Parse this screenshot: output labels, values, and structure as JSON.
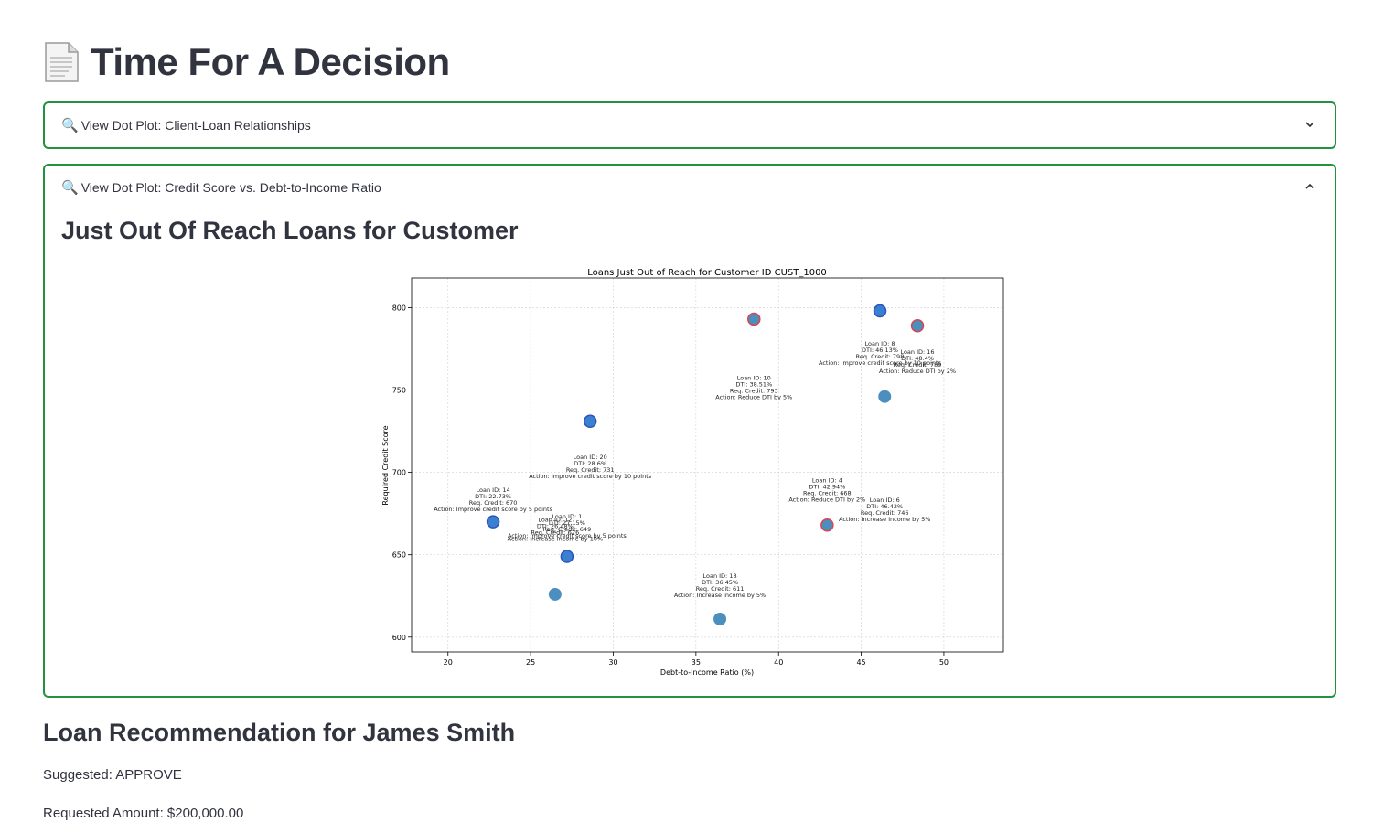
{
  "page": {
    "title": "Time For A Decision",
    "title_icon": "document-icon"
  },
  "expanders": [
    {
      "label": "View Dot Plot: Client-Loan Relationships",
      "icon": "magnifier-icon",
      "expanded": false
    },
    {
      "label": "View Dot Plot: Credit Score vs. Debt-to-Income Ratio",
      "icon": "magnifier-icon",
      "expanded": true
    }
  ],
  "section": {
    "heading": "Just Out Of Reach Loans for Customer"
  },
  "chart_data": {
    "type": "scatter",
    "title": "Loans Just Out of Reach for Customer ID CUST_1000",
    "xlabel": "Debt-to-Income Ratio (%)",
    "ylabel": "Required Credit Score",
    "xlim": [
      17.8,
      53.6
    ],
    "ylim": [
      591,
      818
    ],
    "xticks": [
      20,
      25,
      30,
      35,
      40,
      45,
      50
    ],
    "yticks": [
      600,
      650,
      700,
      750,
      800
    ],
    "grid": true,
    "colors": {
      "blue": "#3a7fd1",
      "steel": "#4c8fbf",
      "red_edge": "#d9434b",
      "blue_edge": "#2a55b8"
    },
    "points": [
      {
        "x": 46.13,
        "y": 798,
        "style": "blue"
      },
      {
        "x": 48.4,
        "y": 789,
        "style": "red"
      },
      {
        "x": 38.51,
        "y": 793,
        "style": "red"
      },
      {
        "x": 46.42,
        "y": 746,
        "style": "steel"
      },
      {
        "x": 28.6,
        "y": 731,
        "style": "blue"
      },
      {
        "x": 22.73,
        "y": 670,
        "style": "blue"
      },
      {
        "x": 42.94,
        "y": 668,
        "style": "red"
      },
      {
        "x": 27.2,
        "y": 649,
        "style": "blue"
      },
      {
        "x": 26.48,
        "y": 626,
        "style": "steel"
      },
      {
        "x": 36.45,
        "y": 611,
        "style": "steel"
      }
    ],
    "annotations": [
      {
        "x": 46.13,
        "y": 777,
        "lines": [
          "Loan ID: 8",
          "DTI: 46.13%",
          "Req. Credit: 798",
          "Action: Improve credit score by 10 points"
        ]
      },
      {
        "x": 48.4,
        "y": 772,
        "lines": [
          "Loan ID: 16",
          "DTI: 48.4%",
          "Req. Credit: 789",
          "Action: Reduce DTI by 2%"
        ]
      },
      {
        "x": 38.51,
        "y": 756,
        "lines": [
          "Loan ID: 10",
          "DTI: 38.51%",
          "Req. Credit: 793",
          "Action: Reduce DTI by 5%"
        ]
      },
      {
        "x": 28.6,
        "y": 708,
        "lines": [
          "Loan ID: 20",
          "DTI: 28.6%",
          "Req. Credit: 731",
          "Action: Improve credit score by 10 points"
        ]
      },
      {
        "x": 42.94,
        "y": 694,
        "lines": [
          "Loan ID: 4",
          "DTI: 42.94%",
          "Req. Credit: 668",
          "Action: Reduce DTI by 2%"
        ]
      },
      {
        "x": 46.42,
        "y": 682,
        "lines": [
          "Loan ID: 6",
          "DTI: 46.42%",
          "Req. Credit: 746",
          "Action: Increase income by 5%"
        ]
      },
      {
        "x": 22.73,
        "y": 688,
        "lines": [
          "Loan ID: 14",
          "DTI: 22.73%",
          "Req. Credit: 670",
          "Action: Improve credit score by 5 points"
        ]
      },
      {
        "x": 26.48,
        "y": 670,
        "lines": [
          "Loan ID: 12",
          "DTI: 26.48%",
          "Req. Credit: 626",
          "Action: Increase income by 10%"
        ]
      },
      {
        "x": 27.2,
        "y": 672,
        "lines": [
          "Loan ID: 1",
          "DTI: 27.15%",
          "Req. Credit: 649",
          "Action: Improve credit score by 5 points"
        ]
      },
      {
        "x": 36.45,
        "y": 636,
        "lines": [
          "Loan ID: 18",
          "DTI: 36.45%",
          "Req. Credit: 611",
          "Action: Increase income by 5%"
        ]
      }
    ]
  },
  "recommendation": {
    "heading": "Loan Recommendation for James Smith",
    "suggested": "Suggested: APPROVE",
    "requested_amount": "Requested Amount: $200,000.00"
  }
}
